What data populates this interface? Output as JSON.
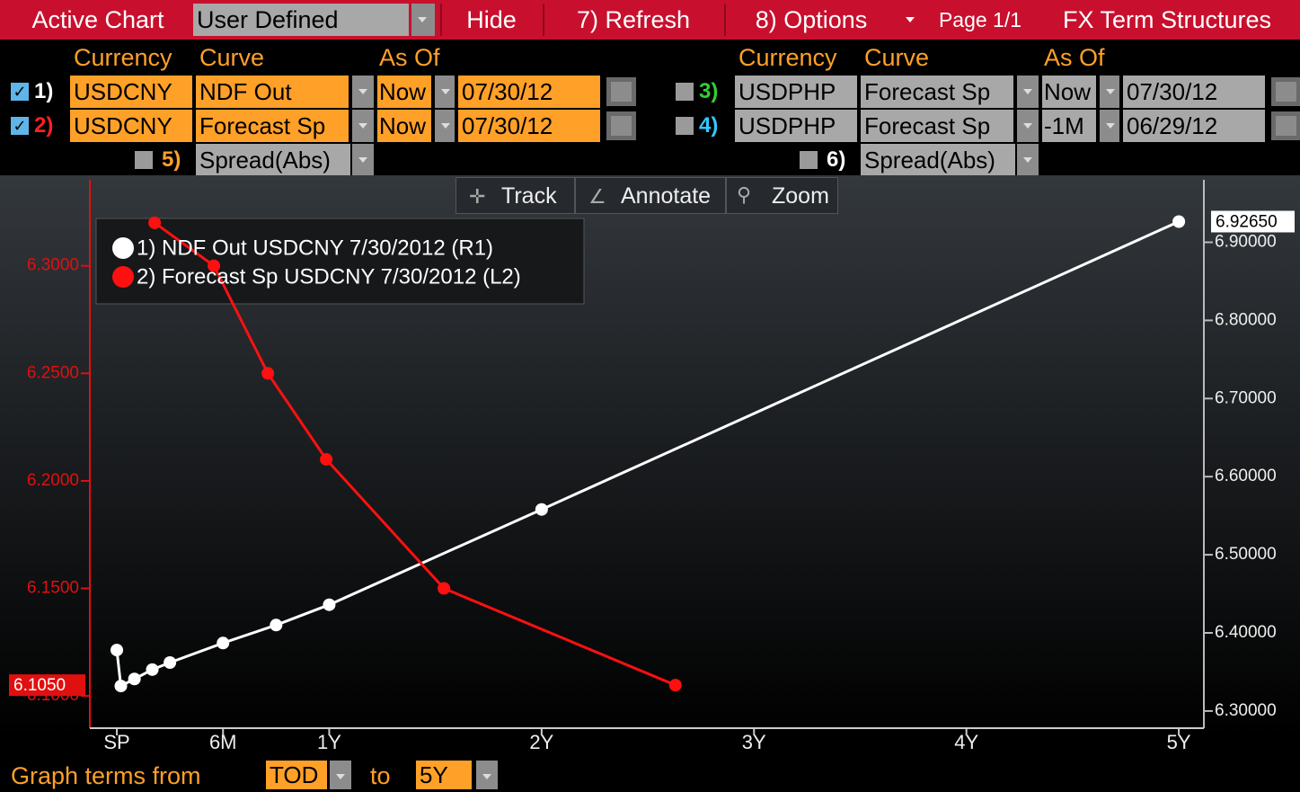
{
  "toolbar": {
    "active_chart": "Active Chart",
    "chart_select": "User Defined",
    "hide": "Hide",
    "refresh": "7) Refresh",
    "options": "8) Options",
    "page": "Page 1/1",
    "title": "FX Term Structures"
  },
  "form": {
    "headers_left": [
      "Currency",
      "Curve",
      "As Of"
    ],
    "headers_right": [
      "Currency",
      "Curve",
      "As Of"
    ],
    "rows": [
      {
        "num": "1)",
        "color": "#ffffff",
        "checked": true,
        "currency": "USDCNY",
        "curve": "NDF Out",
        "as_of": "Now",
        "date": "07/30/12"
      },
      {
        "num": "2)",
        "color": "#ff2020",
        "checked": true,
        "currency": "USDCNY",
        "curve": "Forecast Sp",
        "as_of": "Now",
        "date": "07/30/12"
      },
      {
        "num": "3)",
        "color": "#30d030",
        "checked": false,
        "currency": "USDPHP",
        "curve": "Forecast Sp",
        "as_of": "Now",
        "date": "07/30/12"
      },
      {
        "num": "4)",
        "color": "#30c8ff",
        "checked": false,
        "currency": "USDPHP",
        "curve": "Forecast Sp",
        "as_of": "-1M",
        "date": "06/29/12"
      }
    ],
    "spreads": [
      {
        "num": "5)",
        "color": "#ffa028",
        "curve": "Spread(Abs)"
      },
      {
        "num": "6)",
        "color": "#ffffff",
        "curve": "Spread(Abs)"
      }
    ]
  },
  "chart_tools": [
    "Track",
    "Annotate",
    "Zoom"
  ],
  "chart_data": {
    "type": "line",
    "xlim": [
      -0.127,
      5.118
    ],
    "xticks": [
      {
        "value": 0,
        "label": "SP"
      },
      {
        "value": 0.5,
        "label": "6M"
      },
      {
        "value": 1,
        "label": "1Y"
      },
      {
        "value": 2,
        "label": "2Y"
      },
      {
        "value": 3,
        "label": "3Y"
      },
      {
        "value": 4,
        "label": "4Y"
      },
      {
        "value": 5,
        "label": "5Y"
      }
    ],
    "ylim": [
      6.085,
      6.34
    ],
    "yticks": [
      {
        "value": 6.1,
        "label": "6.1000"
      },
      {
        "value": 6.15,
        "label": "6.1500"
      },
      {
        "value": 6.2,
        "label": "6.2000"
      },
      {
        "value": 6.25,
        "label": "6.2500"
      },
      {
        "value": 6.3,
        "label": "6.3000"
      }
    ],
    "y2lim": [
      6.278,
      6.98
    ],
    "y2ticks": [
      {
        "value": 6.3,
        "label": "6.30000"
      },
      {
        "value": 6.4,
        "label": "6.40000"
      },
      {
        "value": 6.5,
        "label": "6.50000"
      },
      {
        "value": 6.6,
        "label": "6.60000"
      },
      {
        "value": 6.7,
        "label": "6.70000"
      },
      {
        "value": 6.8,
        "label": "6.80000"
      },
      {
        "value": 6.9,
        "label": "6.90000"
      }
    ],
    "grid": false,
    "series": [
      {
        "name": "1) NDF Out USDCNY 7/30/2012 (R1)",
        "color": "#ffffff",
        "axis": "y2",
        "x": [
          0,
          0.019,
          0.083,
          0.167,
          0.25,
          0.5,
          0.75,
          1,
          2,
          5
        ],
        "values": [
          6.378,
          6.332,
          6.341,
          6.353,
          6.362,
          6.387,
          6.41,
          6.436,
          6.558,
          6.9265
        ],
        "value_labels": [
          null,
          null,
          null,
          null,
          null,
          null,
          null,
          null,
          null,
          "6.92650"
        ]
      },
      {
        "name": "2) Forecast Sp USDCNY 7/30/2012 (L2)",
        "color": "#ff1010",
        "axis": "y",
        "x": [
          0.178,
          0.457,
          0.711,
          0.986,
          1.54,
          2.63
        ],
        "values": [
          6.32,
          6.3,
          6.25,
          6.21,
          6.15,
          6.105
        ],
        "value_labels": [
          null,
          null,
          null,
          null,
          null,
          "6.1050"
        ]
      }
    ]
  },
  "footer": {
    "from_label": "Graph terms from",
    "from": "TOD",
    "to_label": "to",
    "to": "5Y"
  }
}
